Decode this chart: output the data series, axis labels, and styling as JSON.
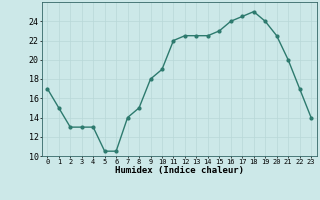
{
  "x": [
    0,
    1,
    2,
    3,
    4,
    5,
    6,
    7,
    8,
    9,
    10,
    11,
    12,
    13,
    14,
    15,
    16,
    17,
    18,
    19,
    20,
    21,
    22,
    23
  ],
  "y": [
    17,
    15,
    13,
    13,
    13,
    10.5,
    10.5,
    14,
    15,
    18,
    19,
    22,
    22.5,
    22.5,
    22.5,
    23,
    24,
    24.5,
    25,
    24,
    22.5,
    20,
    17,
    14
  ],
  "xlabel": "Humidex (Indice chaleur)",
  "ylim": [
    10,
    26
  ],
  "xlim": [
    -0.5,
    23.5
  ],
  "yticks": [
    10,
    12,
    14,
    16,
    18,
    20,
    22,
    24
  ],
  "xticks": [
    0,
    1,
    2,
    3,
    4,
    5,
    6,
    7,
    8,
    9,
    10,
    11,
    12,
    13,
    14,
    15,
    16,
    17,
    18,
    19,
    20,
    21,
    22,
    23
  ],
  "xtick_labels": [
    "0",
    "1",
    "2",
    "3",
    "4",
    "5",
    "6",
    "7",
    "8",
    "9",
    "10",
    "11",
    "12",
    "13",
    "14",
    "15",
    "16",
    "17",
    "18",
    "19",
    "20",
    "21",
    "22",
    "23"
  ],
  "line_color": "#2d7a6e",
  "marker": "o",
  "marker_size": 2.0,
  "line_width": 1.0,
  "bg_color": "#cce8e8",
  "grid_color": "#b8d8d8",
  "fig_bg": "#cce8e8"
}
